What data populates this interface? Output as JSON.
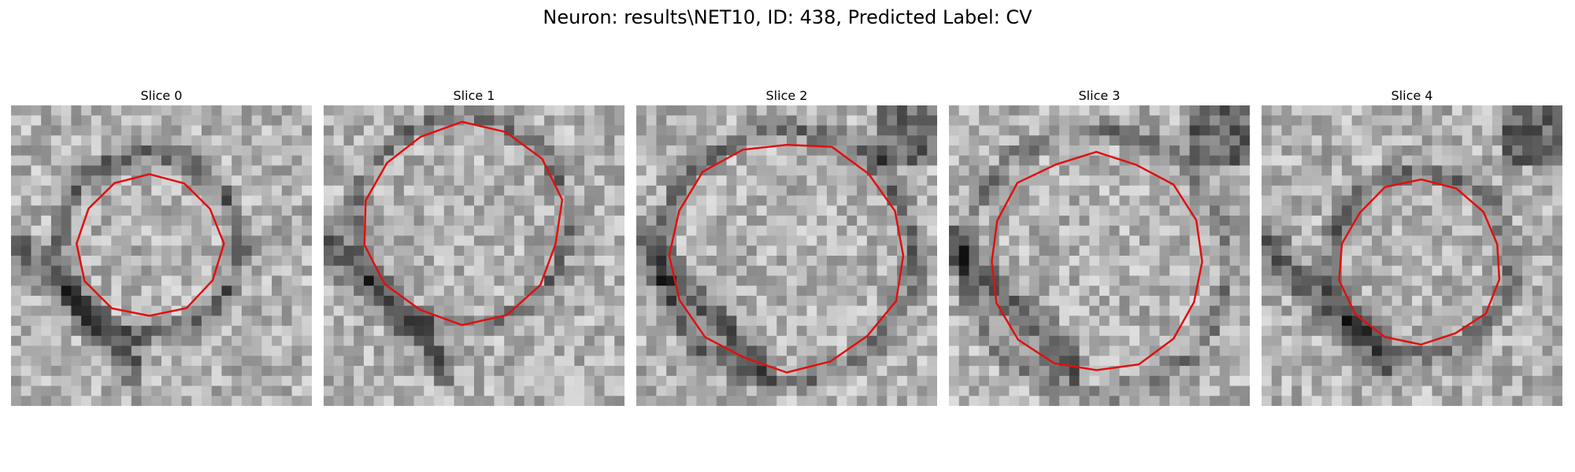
{
  "figure": {
    "title": "Neuron: results\\NET10, ID: 438, Predicted Label: CV"
  },
  "panels": [
    {
      "label": "Slice 0",
      "seed": 11,
      "contour_color": "#e01010",
      "darkness": 0.35
    },
    {
      "label": "Slice 1",
      "seed": 23,
      "contour_color": "#e01010",
      "darkness": 0.25
    },
    {
      "label": "Slice 2",
      "seed": 37,
      "contour_color": "#e01010",
      "darkness": 0.3
    },
    {
      "label": "Slice 3",
      "seed": 41,
      "contour_color": "#e01010",
      "darkness": 0.22
    },
    {
      "label": "Slice 4",
      "seed": 59,
      "contour_color": "#e01010",
      "darkness": 0.3
    }
  ]
}
